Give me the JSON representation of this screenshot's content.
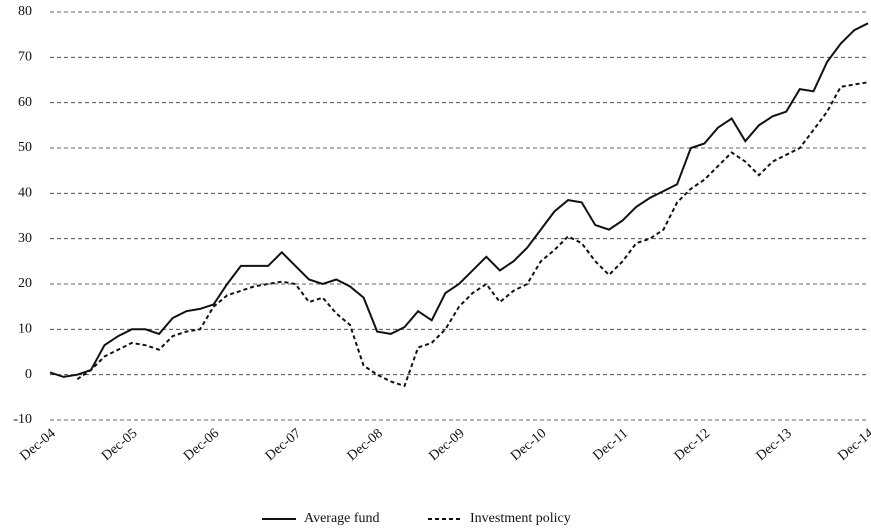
{
  "chart_data": {
    "type": "line",
    "categories": [
      "Dec-04",
      null,
      null,
      null,
      null,
      null,
      "Dec-05",
      null,
      null,
      null,
      null,
      null,
      "Dec-06",
      null,
      null,
      null,
      null,
      null,
      "Dec-07",
      null,
      null,
      null,
      null,
      null,
      "Dec-08",
      null,
      null,
      null,
      null,
      null,
      "Dec-09",
      null,
      null,
      null,
      null,
      null,
      "Dec-10",
      null,
      null,
      null,
      null,
      null,
      "Dec-11",
      null,
      null,
      null,
      null,
      null,
      "Dec-12",
      null,
      null,
      null,
      null,
      null,
      "Dec-13",
      null,
      null,
      null,
      null,
      null,
      "Dec-14"
    ],
    "series": [
      {
        "name": "Average fund",
        "color": "#111111",
        "line_style": "solid",
        "values": [
          0.5,
          -0.5,
          0,
          1,
          6.5,
          8.5,
          10,
          10,
          9,
          12.5,
          14,
          14.5,
          15.5,
          20,
          24,
          24,
          24,
          27,
          24,
          21,
          20,
          21,
          19.5,
          17,
          9.5,
          9,
          10.5,
          14,
          12,
          18,
          20,
          23,
          26,
          23,
          25,
          28,
          32,
          36,
          38.5,
          38,
          33,
          32,
          34,
          37,
          39,
          40.5,
          42,
          50,
          51,
          54.5,
          56.5,
          51.5,
          55,
          57,
          58,
          63,
          62.5,
          69,
          73,
          76,
          77.5
        ]
      },
      {
        "name": "Investment policy",
        "color": "#111111",
        "line_style": "dashed",
        "values": [
          null,
          null,
          -1,
          1,
          4,
          5.5,
          7,
          6.5,
          5.5,
          8.5,
          9.5,
          10,
          15,
          17.5,
          18.5,
          19.5,
          20,
          20.5,
          20,
          16,
          17,
          13.5,
          11,
          2,
          0,
          -1.5,
          -2.5,
          6,
          7,
          10,
          15,
          18,
          20,
          16,
          18.5,
          20,
          25,
          27.5,
          30.5,
          29,
          25,
          22,
          25,
          29,
          30,
          32,
          38,
          41,
          43,
          46,
          49,
          47,
          44,
          47,
          48.5,
          50,
          54,
          58,
          63.5,
          64,
          64.5
        ]
      }
    ],
    "ylim": [
      -10,
      80
    ],
    "yticks": [
      -10,
      0,
      10,
      20,
      30,
      40,
      50,
      60,
      70,
      80
    ],
    "grid": true,
    "legend": "bottom"
  }
}
